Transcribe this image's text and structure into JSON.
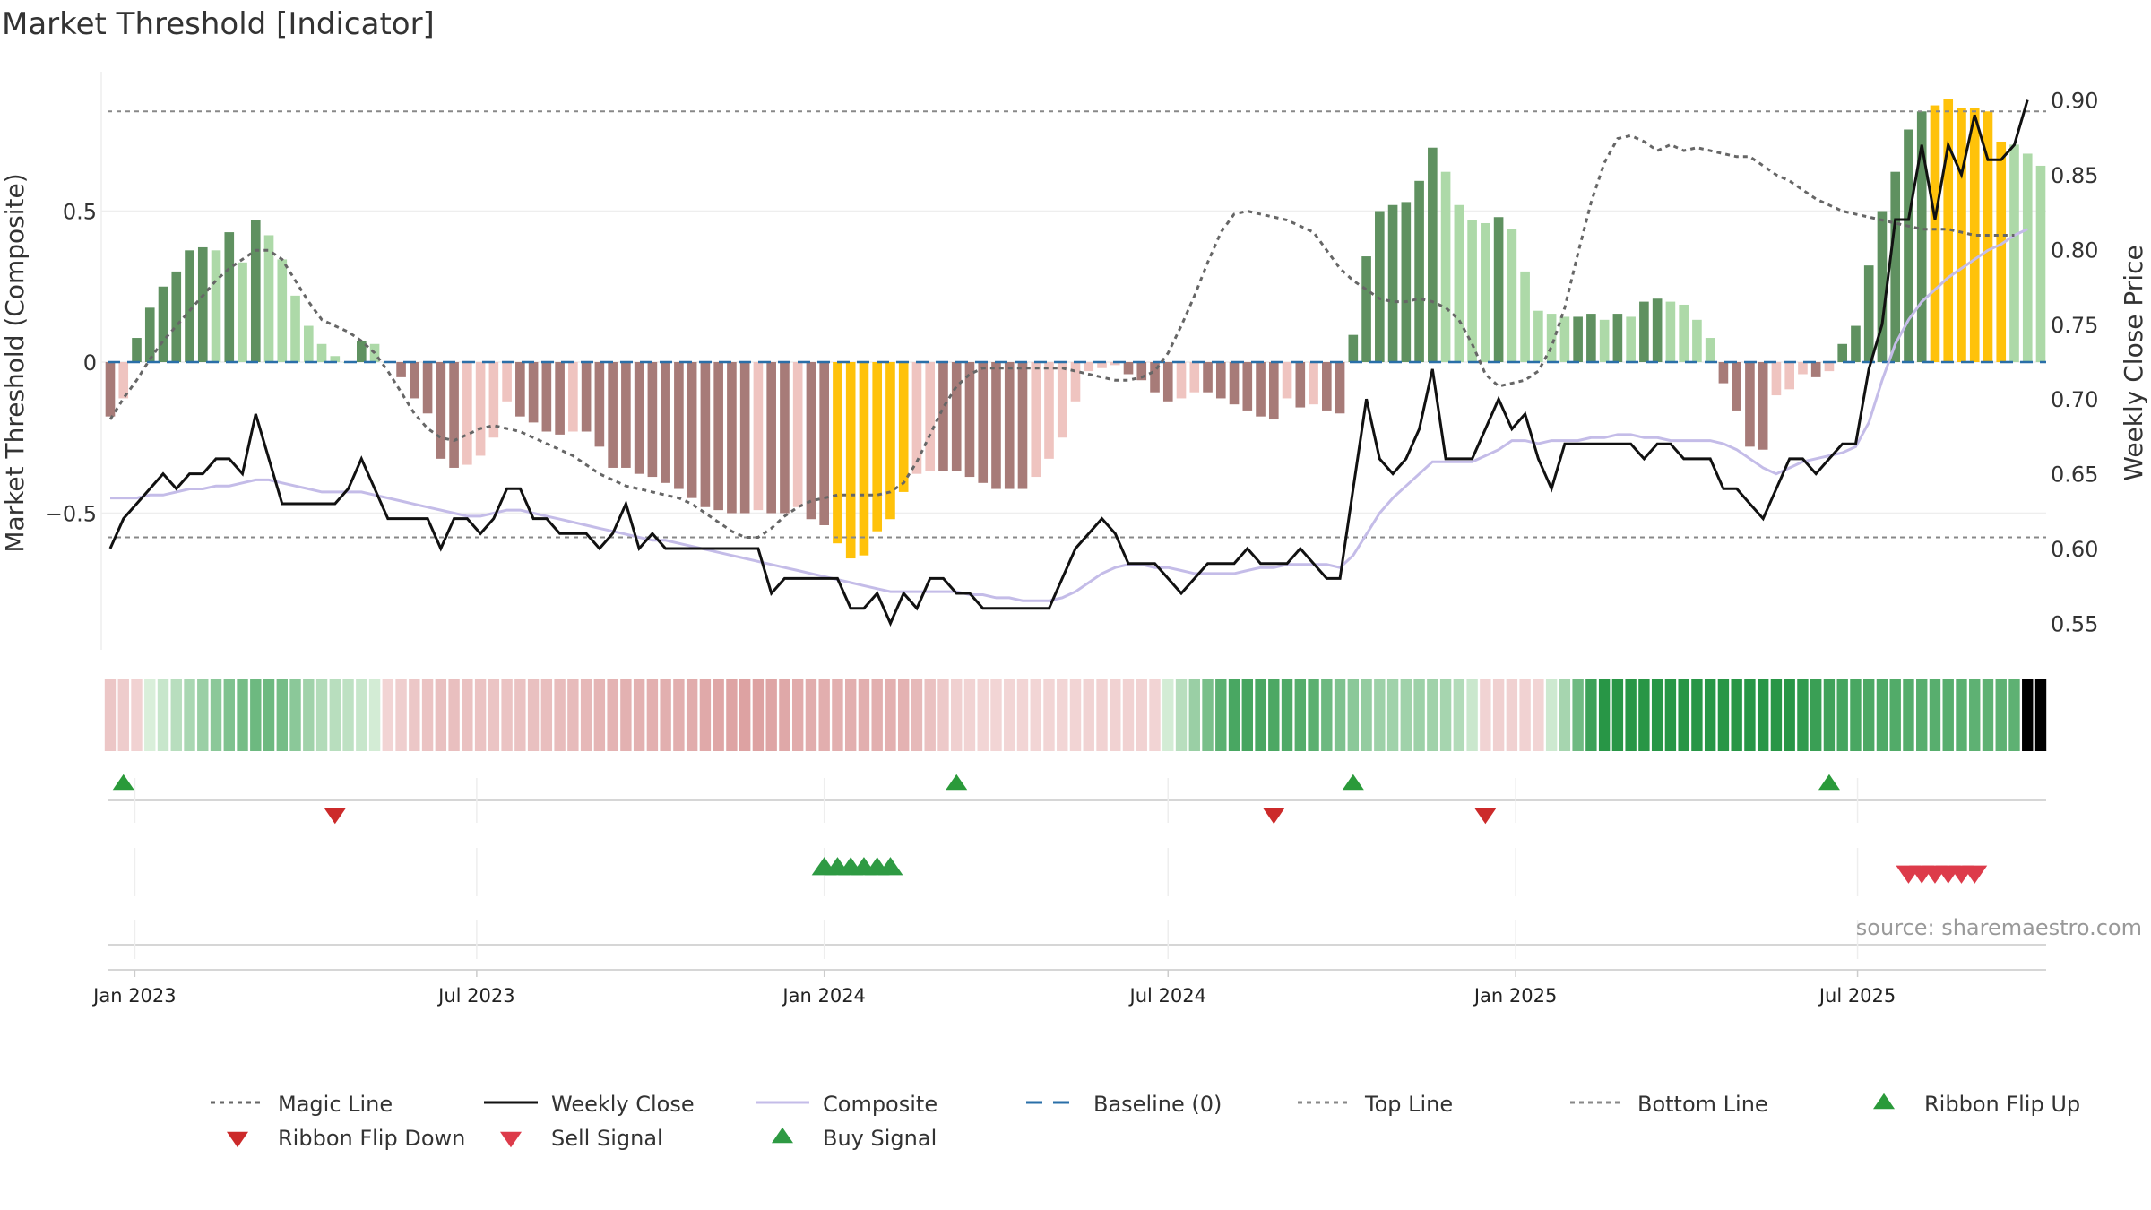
{
  "chart_data": {
    "type": "bar",
    "title": "Market Threshold [Indicator]",
    "ylabel": "Market Threshold (Composite)",
    "y2label": "Weekly Close Price",
    "ylim": [
      -0.95,
      0.95
    ],
    "y2lim": [
      0.52,
      0.915
    ],
    "yticks": [
      {
        "v": 0.5,
        "label": "0.5"
      },
      {
        "v": 0,
        "label": "0"
      },
      {
        "v": -0.5,
        "label": "−0.5"
      }
    ],
    "y2ticks": [
      0.55,
      0.6,
      0.65,
      0.7,
      0.75,
      0.8,
      0.85,
      0.9
    ],
    "date_start": "2022-12-19",
    "date_end": "2025-10-06",
    "xticks": [
      {
        "date": "2023-01-01",
        "label": "Jan 2023"
      },
      {
        "date": "2023-07-01",
        "label": "Jul 2023"
      },
      {
        "date": "2024-01-01",
        "label": "Jan 2024"
      },
      {
        "date": "2024-07-01",
        "label": "Jul 2024"
      },
      {
        "date": "2025-01-01",
        "label": "Jan 2025"
      },
      {
        "date": "2025-07-01",
        "label": "Jul 2025"
      }
    ],
    "top_line": 0.83,
    "bottom_line": -0.58,
    "baseline": 0,
    "series": [
      {
        "name": "Weekly Close",
        "values": [
          0.6,
          0.62,
          0.63,
          0.64,
          0.65,
          0.64,
          0.65,
          0.65,
          0.66,
          0.66,
          0.65,
          0.69,
          0.66,
          0.63,
          0.63,
          0.63,
          0.63,
          0.63,
          0.64,
          0.66,
          0.64,
          0.62,
          0.62,
          0.62,
          0.62,
          0.6,
          0.62,
          0.62,
          0.61,
          0.62,
          0.64,
          0.64,
          0.62,
          0.62,
          0.61,
          0.61,
          0.61,
          0.6,
          0.61,
          0.63,
          0.6,
          0.61,
          0.6,
          0.6,
          0.6,
          0.6,
          0.6,
          0.6,
          0.6,
          0.6,
          0.57,
          0.58,
          0.58,
          0.58,
          0.58,
          0.58,
          0.56,
          0.56,
          0.57,
          0.55,
          0.57,
          0.56,
          0.58,
          0.58,
          0.57,
          0.57,
          0.56,
          0.56,
          0.56,
          0.56,
          0.56,
          0.56,
          0.58,
          0.6,
          0.61,
          0.62,
          0.61,
          0.59,
          0.59,
          0.59,
          0.58,
          0.57,
          0.58,
          0.59,
          0.59,
          0.59,
          0.6,
          0.59,
          0.59,
          0.59,
          0.6,
          0.59,
          0.58,
          0.58,
          0.64,
          0.7,
          0.66,
          0.65,
          0.66,
          0.68,
          0.72,
          0.66,
          0.66,
          0.66,
          0.68,
          0.7,
          0.68,
          0.69,
          0.66,
          0.64,
          0.67,
          0.67,
          0.67,
          0.67,
          0.67,
          0.67,
          0.66,
          0.67,
          0.67,
          0.66,
          0.66,
          0.66,
          0.64,
          0.64,
          0.63,
          0.62,
          0.64,
          0.66,
          0.66,
          0.65,
          0.66,
          0.67,
          0.67,
          0.72,
          0.75,
          0.82,
          0.82,
          0.87,
          0.82,
          0.87,
          0.85,
          0.89,
          0.86,
          0.86,
          0.87,
          0.9
        ]
      },
      {
        "name": "Composite",
        "values": [
          -0.45,
          -0.45,
          -0.45,
          -0.44,
          -0.44,
          -0.43,
          -0.42,
          -0.42,
          -0.41,
          -0.41,
          -0.4,
          -0.39,
          -0.39,
          -0.4,
          -0.41,
          -0.42,
          -0.43,
          -0.43,
          -0.43,
          -0.43,
          -0.44,
          -0.45,
          -0.46,
          -0.47,
          -0.48,
          -0.49,
          -0.5,
          -0.51,
          -0.51,
          -0.5,
          -0.49,
          -0.49,
          -0.5,
          -0.51,
          -0.52,
          -0.53,
          -0.54,
          -0.55,
          -0.56,
          -0.57,
          -0.58,
          -0.59,
          -0.59,
          -0.6,
          -0.61,
          -0.62,
          -0.63,
          -0.64,
          -0.65,
          -0.66,
          -0.67,
          -0.68,
          -0.69,
          -0.7,
          -0.71,
          -0.72,
          -0.73,
          -0.74,
          -0.75,
          -0.76,
          -0.76,
          -0.76,
          -0.76,
          -0.76,
          -0.76,
          -0.77,
          -0.77,
          -0.78,
          -0.78,
          -0.79,
          -0.79,
          -0.79,
          -0.78,
          -0.76,
          -0.73,
          -0.7,
          -0.68,
          -0.67,
          -0.67,
          -0.68,
          -0.68,
          -0.69,
          -0.7,
          -0.7,
          -0.7,
          -0.7,
          -0.69,
          -0.68,
          -0.68,
          -0.67,
          -0.67,
          -0.67,
          -0.67,
          -0.68,
          -0.64,
          -0.57,
          -0.5,
          -0.45,
          -0.41,
          -0.37,
          -0.33,
          -0.33,
          -0.33,
          -0.33,
          -0.31,
          -0.29,
          -0.26,
          -0.26,
          -0.27,
          -0.26,
          -0.26,
          -0.26,
          -0.25,
          -0.25,
          -0.24,
          -0.24,
          -0.25,
          -0.25,
          -0.26,
          -0.26,
          -0.26,
          -0.26,
          -0.27,
          -0.29,
          -0.32,
          -0.35,
          -0.37,
          -0.35,
          -0.33,
          -0.32,
          -0.31,
          -0.3,
          -0.28,
          -0.2,
          -0.06,
          0.06,
          0.14,
          0.2,
          0.24,
          0.28,
          0.31,
          0.34,
          0.37,
          0.39,
          0.42,
          0.44
        ]
      },
      {
        "name": "Magic Line",
        "values": [
          -0.19,
          -0.12,
          -0.06,
          0.01,
          0.07,
          0.12,
          0.17,
          0.22,
          0.27,
          0.31,
          0.34,
          0.37,
          0.37,
          0.34,
          0.27,
          0.2,
          0.14,
          0.12,
          0.1,
          0.07,
          0.03,
          -0.03,
          -0.1,
          -0.17,
          -0.22,
          -0.25,
          -0.26,
          -0.24,
          -0.22,
          -0.21,
          -0.22,
          -0.23,
          -0.25,
          -0.27,
          -0.29,
          -0.31,
          -0.34,
          -0.37,
          -0.39,
          -0.41,
          -0.42,
          -0.43,
          -0.44,
          -0.45,
          -0.47,
          -0.5,
          -0.53,
          -0.56,
          -0.58,
          -0.58,
          -0.55,
          -0.51,
          -0.48,
          -0.46,
          -0.45,
          -0.44,
          -0.44,
          -0.44,
          -0.44,
          -0.43,
          -0.4,
          -0.33,
          -0.24,
          -0.15,
          -0.08,
          -0.04,
          -0.02,
          -0.02,
          -0.02,
          -0.02,
          -0.02,
          -0.02,
          -0.02,
          -0.03,
          -0.04,
          -0.05,
          -0.06,
          -0.06,
          -0.05,
          -0.03,
          0.03,
          0.12,
          0.22,
          0.33,
          0.43,
          0.49,
          0.5,
          0.49,
          0.48,
          0.47,
          0.45,
          0.43,
          0.37,
          0.31,
          0.27,
          0.24,
          0.21,
          0.2,
          0.2,
          0.21,
          0.2,
          0.18,
          0.14,
          0.06,
          -0.04,
          -0.08,
          -0.07,
          -0.06,
          -0.03,
          0.05,
          0.18,
          0.36,
          0.53,
          0.66,
          0.74,
          0.75,
          0.73,
          0.7,
          0.72,
          0.7,
          0.71,
          0.7,
          0.69,
          0.68,
          0.68,
          0.65,
          0.62,
          0.6,
          0.57,
          0.54,
          0.52,
          0.5,
          0.49,
          0.48,
          0.47,
          0.46,
          0.45,
          0.44,
          0.44,
          0.44,
          0.43,
          0.42,
          0.42,
          0.42,
          0.42
        ]
      },
      {
        "name": "Composite",
        "values": [
          -0.18,
          -0.12,
          0.08,
          0.18,
          0.25,
          0.3,
          0.37,
          0.38,
          0.37,
          0.43,
          0.33,
          0.47,
          0.42,
          0.34,
          0.22,
          0.12,
          0.06,
          0.02,
          0.0,
          0.07,
          0.06,
          0.0,
          -0.05,
          -0.12,
          -0.17,
          -0.32,
          -0.35,
          -0.34,
          -0.31,
          -0.25,
          -0.13,
          -0.18,
          -0.2,
          -0.23,
          -0.24,
          -0.23,
          -0.23,
          -0.28,
          -0.35,
          -0.35,
          -0.37,
          -0.38,
          -0.4,
          -0.42,
          -0.45,
          -0.48,
          -0.49,
          -0.5,
          -0.5,
          -0.49,
          -0.5,
          -0.5,
          -0.48,
          -0.52,
          -0.54,
          -0.6,
          -0.65,
          -0.64,
          -0.56,
          -0.52,
          -0.43,
          -0.37,
          -0.36,
          -0.36,
          -0.36,
          -0.38,
          -0.4,
          -0.42,
          -0.42,
          -0.42,
          -0.38,
          -0.32,
          -0.25,
          -0.13,
          -0.03,
          -0.02,
          -0.01,
          -0.04,
          -0.06,
          -0.1,
          -0.13,
          -0.12,
          -0.1,
          -0.1,
          -0.12,
          -0.14,
          -0.16,
          -0.18,
          -0.19,
          -0.12,
          -0.15,
          -0.14,
          -0.16,
          -0.17,
          0.09,
          0.35,
          0.5,
          0.52,
          0.53,
          0.6,
          0.71,
          0.63,
          0.52,
          0.47,
          0.46,
          0.48,
          0.44,
          0.3,
          0.17,
          0.16,
          0.15,
          0.15,
          0.16,
          0.14,
          0.16,
          0.15,
          0.2,
          0.21,
          0.2,
          0.19,
          0.14,
          0.08,
          -0.07,
          -0.16,
          -0.28,
          -0.29,
          -0.11,
          -0.09,
          -0.04,
          -0.05,
          -0.03,
          0.06,
          0.12,
          0.32,
          0.5,
          0.63,
          0.77,
          0.83,
          0.85,
          0.87,
          0.84,
          0.84,
          0.83,
          0.73,
          0.72,
          0.69,
          0.65
        ]
      }
    ],
    "legend": [
      {
        "label": "Magic Line",
        "kind": "dotted",
        "color": "#666666"
      },
      {
        "label": "Weekly Close",
        "kind": "solid",
        "color": "#111111"
      },
      {
        "label": "Composite",
        "kind": "solid",
        "color": "#c4bce8"
      },
      {
        "label": "Baseline (0)",
        "kind": "dashed",
        "color": "#2a6fa8"
      },
      {
        "label": "Top Line",
        "kind": "dotted",
        "color": "#888888"
      },
      {
        "label": "Bottom Line",
        "kind": "dotted",
        "color": "#888888"
      },
      {
        "label": "Ribbon Flip Up",
        "kind": "tri-up",
        "color": "#2a9a3a"
      },
      {
        "label": "Ribbon Flip Down",
        "kind": "tri-down",
        "color": "#cc2a2a"
      },
      {
        "label": "Sell Signal",
        "kind": "tri-down",
        "color": "#dd3b4a"
      },
      {
        "label": "Buy Signal",
        "kind": "tri-up",
        "color": "#2e9a43"
      }
    ],
    "ribbon_flip_up_dates": [
      "2022-12-26",
      "2024-03-11",
      "2024-10-07",
      "2025-06-16"
    ],
    "ribbon_flip_down_dates": [
      "2023-04-17",
      "2024-08-26",
      "2024-12-16"
    ],
    "buy_signal_dates": [
      "2024-01-01",
      "2024-01-08",
      "2024-01-15",
      "2024-01-22",
      "2024-01-29",
      "2024-02-05"
    ],
    "sell_signal_dates": [
      "2025-07-28",
      "2025-08-04",
      "2025-08-11",
      "2025-08-18",
      "2025-08-25",
      "2025-09-01"
    ],
    "highlight_color": "#ffc20a",
    "highlight_ranges": [
      [
        55,
        60
      ],
      [
        138,
        143
      ]
    ],
    "ribbon_palette": {
      "pos": [
        [
          220,
          240,
          220
        ],
        [
          40,
          150,
          70
        ]
      ],
      "neg": [
        [
          243,
          215,
          215
        ],
        [
          220,
          160,
          160
        ]
      ]
    },
    "legend_position": "bottom",
    "source": "source: sharemaestro.com"
  }
}
